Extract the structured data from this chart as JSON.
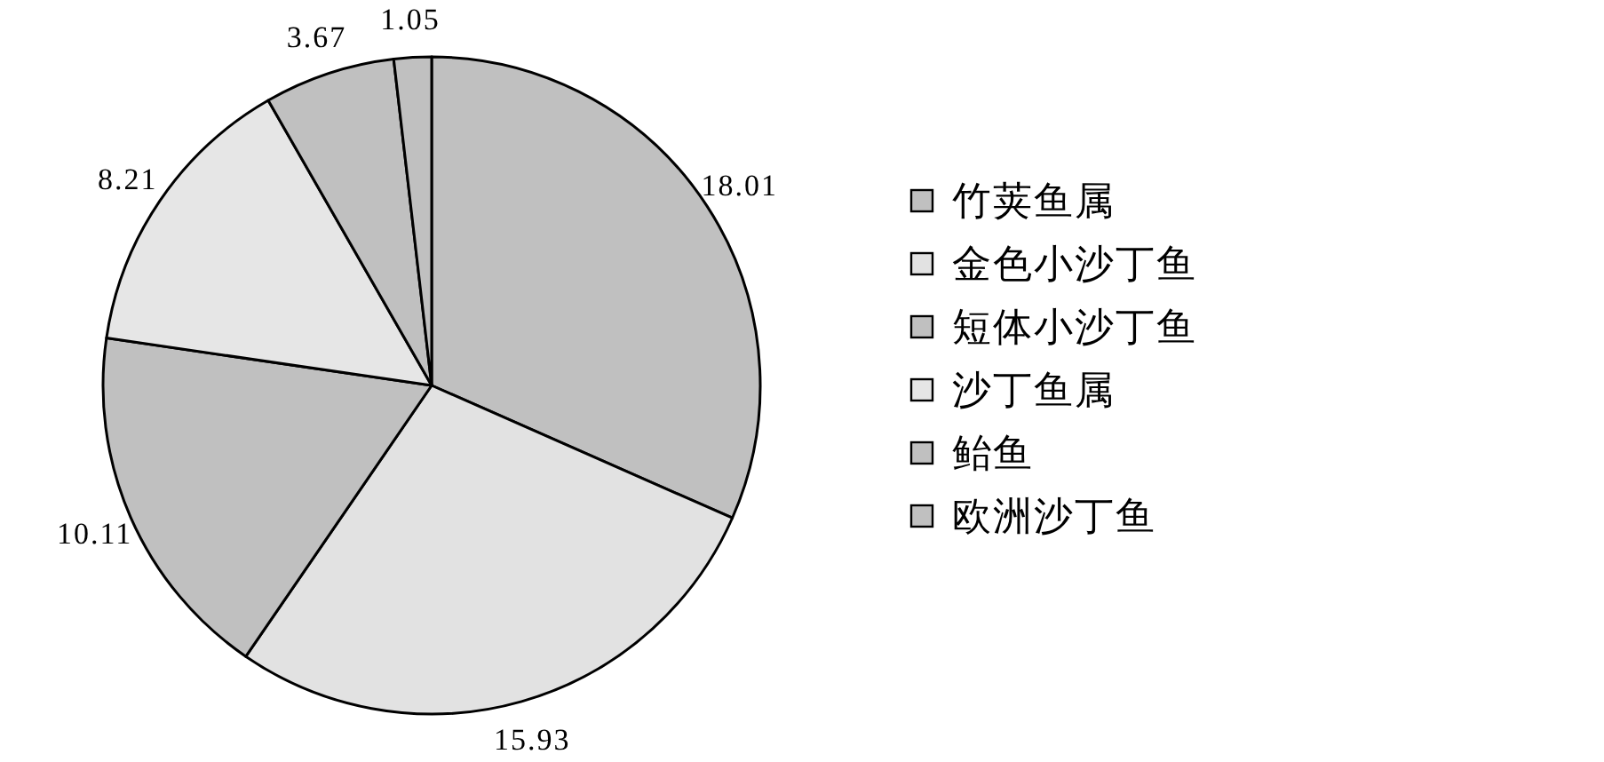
{
  "chart_data": {
    "type": "pie",
    "categories": [
      "竹荚鱼属",
      "金色小沙丁鱼",
      "短体小沙丁鱼",
      "沙丁鱼属",
      "鲐鱼",
      "欧洲沙丁鱼"
    ],
    "values": [
      18.01,
      15.93,
      10.11,
      8.21,
      3.67,
      1.05
    ],
    "colors": [
      "#c0c0c0",
      "#e2e2e2",
      "#c0c0c0",
      "#e6e6e6",
      "#c0c0c0",
      "#c0c0c0"
    ],
    "data_labels": true,
    "legend": "right"
  }
}
